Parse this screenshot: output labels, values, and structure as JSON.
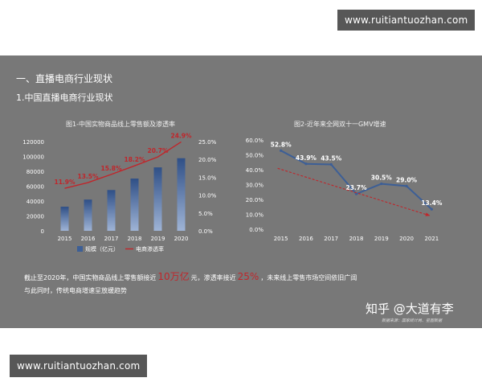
{
  "watermark_top": "www.ruitiantuozhan.com",
  "watermark_bottom": "www.ruitiantuozhan.com",
  "section_title": "一、直播电商行业现状",
  "sub_title": "1.中国直播电商行业现状",
  "chart1_title": "图1-中国实物商品线上零售额及渗透率",
  "chart2_title": "图2-近年来全网双十一GMV增速",
  "summary": {
    "part1": "截止至2020年，中国实物商品线上零售额接近",
    "highlight1": "10万亿",
    "part2": "元，渗透率接近",
    "highlight2": "25%",
    "part3": "，未来线上零售市场空间依旧广阔",
    "line2": "与此同时，传统电商增速呈放缓趋势"
  },
  "brand": "知乎 @大道有李",
  "source": "数据来源：国家统计局、星图数据",
  "colors": {
    "bar": "#3d5f96",
    "line": "#c0262b",
    "text": "#ffffff",
    "background": "#787878"
  },
  "chart_data": [
    {
      "type": "bar",
      "title": "图1-中国实物商品线上零售额及渗透率",
      "categories": [
        "2015",
        "2016",
        "2017",
        "2018",
        "2019",
        "2020"
      ],
      "series": [
        {
          "name": "规模（亿元）",
          "type": "bar",
          "axis": "left",
          "values": [
            32424,
            41944,
            54806,
            70198,
            85239,
            97590
          ]
        },
        {
          "name": "电商渗透率",
          "type": "line",
          "axis": "right",
          "values": [
            11.9,
            13.5,
            15.8,
            18.2,
            20.7,
            24.9
          ]
        }
      ],
      "data_labels": [
        "11.9%",
        "13.5%",
        "15.8%",
        "18.2%",
        "20.7%",
        "24.9%"
      ],
      "y_left_ticks": [
        "0",
        "20000",
        "40000",
        "60000",
        "80000",
        "100000",
        "120000"
      ],
      "y_right_ticks": [
        "0.0%",
        "5.0%",
        "10.0%",
        "15.0%",
        "20.0%",
        "25.0%"
      ],
      "ylim_left": [
        0,
        120000
      ],
      "ylim_right": [
        0,
        25
      ],
      "legend_placement": "bottom"
    },
    {
      "type": "line",
      "title": "图2-近年来全网双十一GMV增速",
      "categories": [
        "2015",
        "2016",
        "2017",
        "2018",
        "2019",
        "2020",
        "2021"
      ],
      "values": [
        52.8,
        43.9,
        43.5,
        23.7,
        30.5,
        29.0,
        13.4
      ],
      "data_labels": [
        "52.8%",
        "43.9%",
        "43.5%",
        "23.7%",
        "30.5%",
        "29.0%",
        "13.4%"
      ],
      "y_ticks": [
        "0.0%",
        "10.0%",
        "20.0%",
        "30.0%",
        "40.0%",
        "50.0%",
        "60.0%"
      ],
      "ylim": [
        0,
        60
      ],
      "trend": "downward"
    }
  ]
}
